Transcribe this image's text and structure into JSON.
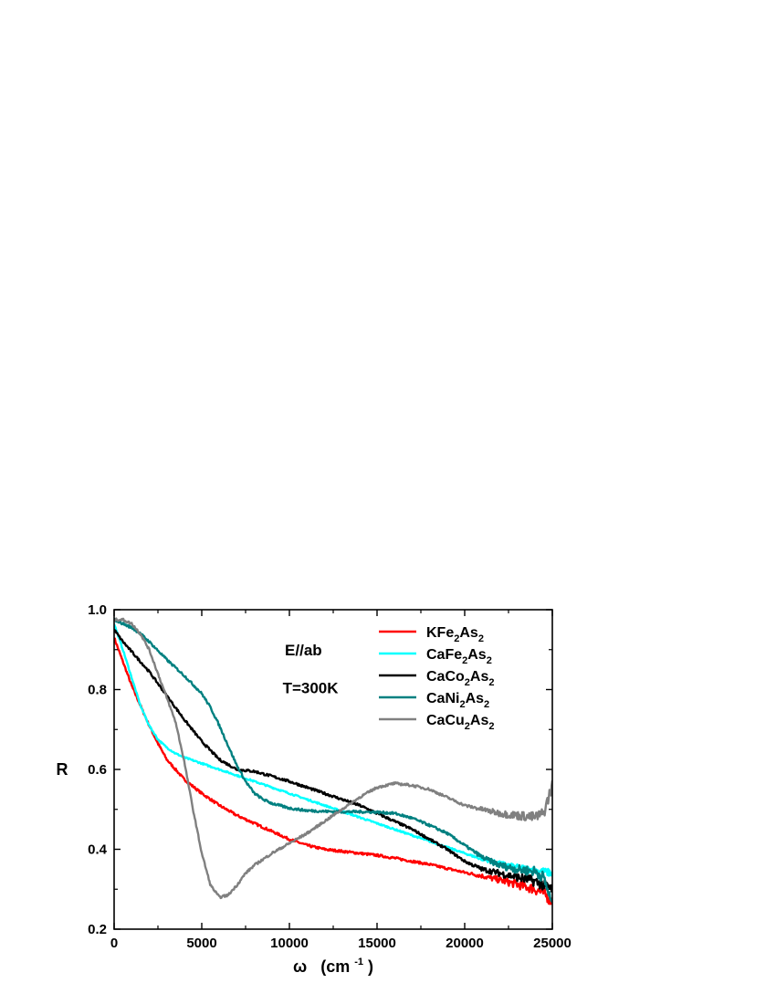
{
  "chart_data": {
    "type": "line",
    "title": "",
    "xlabel": {
      "symbol": "ω",
      "unit_prefix": "(cm",
      "unit_exp": "-1",
      "unit_suffix": ")"
    },
    "ylabel": "R",
    "xlim": [
      0,
      25000
    ],
    "ylim": [
      0.2,
      1.0
    ],
    "x_ticks": [
      0,
      5000,
      10000,
      15000,
      20000,
      25000
    ],
    "x_tick_labels": [
      "0",
      "5000",
      "10000",
      "15000",
      "20000",
      "25000"
    ],
    "y_ticks": [
      0.2,
      0.4,
      0.6,
      0.8,
      1.0
    ],
    "y_tick_labels": [
      "0.2",
      "0.4",
      "0.6",
      "0.8",
      "1.0"
    ],
    "grid": false,
    "legend_position": "top-right",
    "annotations": [
      "E//ab",
      "T=300K"
    ],
    "series": [
      {
        "name": "KFe2As2",
        "label_parts": [
          "KFe",
          "2",
          "As",
          "2"
        ],
        "color": "#ff0000",
        "noise": 0.003,
        "x": [
          0,
          500,
          1000,
          1500,
          2000,
          2500,
          3000,
          3500,
          4000,
          5000,
          6000,
          7000,
          8000,
          9000,
          10000,
          11000,
          12000,
          13000,
          14000,
          15000,
          16000,
          17000,
          18000,
          19000,
          20000,
          21000,
          22000,
          23000,
          24000,
          24500,
          25000
        ],
        "y": [
          0.93,
          0.87,
          0.81,
          0.76,
          0.71,
          0.665,
          0.625,
          0.6,
          0.575,
          0.54,
          0.51,
          0.485,
          0.465,
          0.445,
          0.425,
          0.41,
          0.4,
          0.395,
          0.39,
          0.385,
          0.378,
          0.37,
          0.362,
          0.352,
          0.342,
          0.333,
          0.323,
          0.312,
          0.3,
          0.29,
          0.27
        ]
      },
      {
        "name": "CaFe2As2",
        "label_parts": [
          "CaFe",
          "2",
          "As",
          "2"
        ],
        "color": "#00ffff",
        "noise": 0.002,
        "x": [
          0,
          500,
          1000,
          1500,
          2000,
          2500,
          3000,
          3500,
          4000,
          5000,
          6000,
          7000,
          8000,
          9000,
          10000,
          11000,
          12000,
          13000,
          14000,
          15000,
          16000,
          17000,
          18000,
          19000,
          20000,
          21000,
          22000,
          23000,
          24000,
          25000
        ],
        "y": [
          0.965,
          0.9,
          0.83,
          0.76,
          0.71,
          0.675,
          0.655,
          0.64,
          0.63,
          0.615,
          0.6,
          0.585,
          0.57,
          0.555,
          0.54,
          0.525,
          0.51,
          0.495,
          0.48,
          0.465,
          0.45,
          0.435,
          0.42,
          0.405,
          0.39,
          0.375,
          0.365,
          0.355,
          0.348,
          0.34
        ]
      },
      {
        "name": "CaCo2As2",
        "label_parts": [
          "CaCo",
          "2",
          "As",
          "2"
        ],
        "color": "#000000",
        "noise": 0.003,
        "x": [
          0,
          500,
          1000,
          1500,
          2000,
          2500,
          3000,
          3500,
          4000,
          5000,
          6000,
          7000,
          8000,
          9000,
          10000,
          11000,
          12000,
          13000,
          14000,
          15000,
          16000,
          17000,
          18000,
          19000,
          20000,
          21000,
          22000,
          23000,
          24000,
          24500,
          25000
        ],
        "y": [
          0.95,
          0.92,
          0.895,
          0.87,
          0.845,
          0.815,
          0.785,
          0.755,
          0.725,
          0.67,
          0.625,
          0.6,
          0.595,
          0.583,
          0.57,
          0.555,
          0.54,
          0.525,
          0.51,
          0.49,
          0.47,
          0.45,
          0.425,
          0.4,
          0.37,
          0.35,
          0.34,
          0.33,
          0.32,
          0.31,
          0.3
        ]
      },
      {
        "name": "CaNi2As2",
        "label_parts": [
          "CaNi",
          "2",
          "As",
          "2"
        ],
        "color": "#008080",
        "noise": 0.003,
        "x": [
          0,
          500,
          1000,
          1500,
          2000,
          3000,
          4000,
          5000,
          5500,
          6000,
          6500,
          7000,
          7500,
          8000,
          8500,
          9000,
          10000,
          11000,
          12000,
          13000,
          14000,
          15000,
          16000,
          17000,
          18000,
          19000,
          20000,
          21000,
          22000,
          23000,
          24000,
          24500,
          25000
        ],
        "y": [
          0.975,
          0.965,
          0.955,
          0.94,
          0.92,
          0.875,
          0.835,
          0.79,
          0.755,
          0.71,
          0.66,
          0.61,
          0.57,
          0.54,
          0.525,
          0.515,
          0.503,
          0.497,
          0.495,
          0.494,
          0.494,
          0.493,
          0.49,
          0.478,
          0.46,
          0.44,
          0.41,
          0.38,
          0.36,
          0.35,
          0.345,
          0.33,
          0.26
        ]
      },
      {
        "name": "CaCu2As2",
        "label_parts": [
          "CaCu",
          "2",
          "As",
          "2"
        ],
        "color": "#808080",
        "noise": 0.003,
        "x": [
          0,
          500,
          1000,
          1500,
          2000,
          2500,
          3000,
          3500,
          4000,
          4500,
          5000,
          5500,
          6000,
          6500,
          7000,
          7500,
          8000,
          9000,
          10000,
          11000,
          12000,
          13000,
          14000,
          15000,
          16000,
          17000,
          18000,
          19000,
          20000,
          21000,
          22000,
          23000,
          24000,
          24500,
          25000
        ],
        "y": [
          0.975,
          0.975,
          0.965,
          0.94,
          0.9,
          0.84,
          0.78,
          0.72,
          0.62,
          0.5,
          0.39,
          0.31,
          0.28,
          0.285,
          0.31,
          0.34,
          0.36,
          0.39,
          0.415,
          0.44,
          0.47,
          0.5,
          0.53,
          0.555,
          0.565,
          0.56,
          0.55,
          0.53,
          0.51,
          0.5,
          0.49,
          0.485,
          0.48,
          0.49,
          0.56
        ]
      }
    ]
  }
}
